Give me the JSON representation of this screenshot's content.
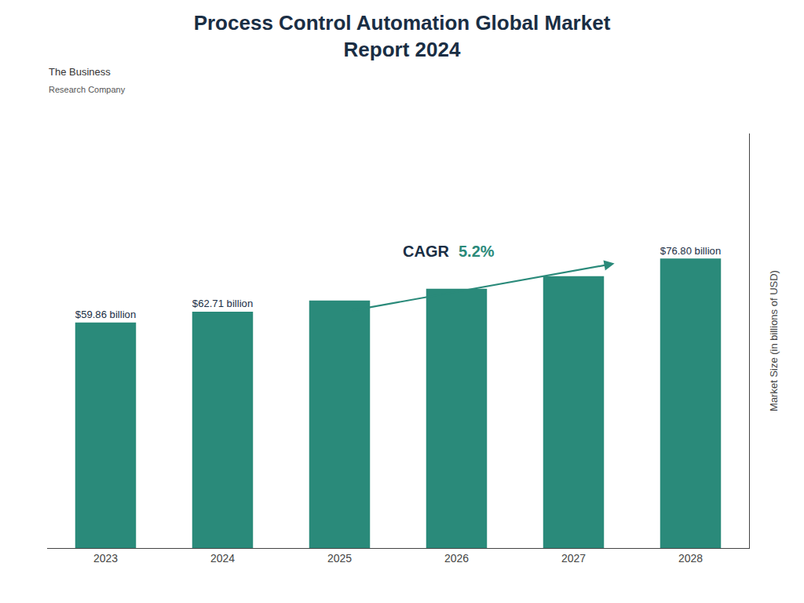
{
  "chart_data": {
    "type": "bar",
    "title": "Process Control Automation Global Market\nReport 2024",
    "categories": [
      "2023",
      "2024",
      "2025",
      "2026",
      "2027",
      "2028"
    ],
    "values": [
      59.86,
      62.71,
      65.68,
      68.79,
      72.16,
      76.8
    ],
    "color": "#2a8a7a",
    "ylabel": "Market Size (in billions of USD)",
    "ylim": [
      0,
      110
    ],
    "grid": false,
    "tick_labels": "x",
    "data_labels": true,
    "value_labels": [
      "$59.86 billion",
      "$62.71 billion",
      null,
      null,
      null,
      "$76.80 billion"
    ],
    "annotations": [
      "CAGR",
      "5.2%",
      "The Business",
      "Research Company"
    ]
  }
}
